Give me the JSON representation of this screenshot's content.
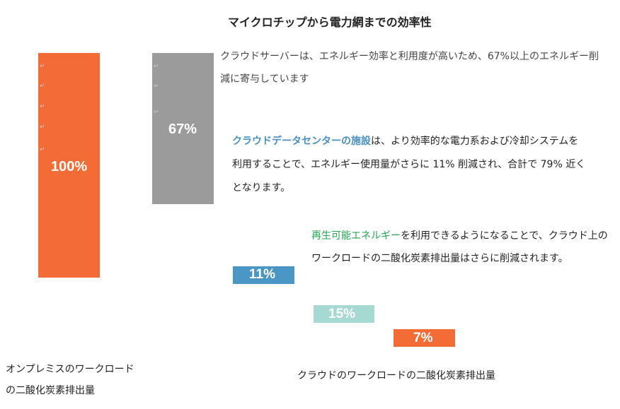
{
  "chart_data": {
    "type": "bar",
    "title": "マイクロチップから電力網までの効率性",
    "bars": [
      {
        "label": "100%",
        "value": 100,
        "color": "#f36c36"
      },
      {
        "label": "67%",
        "value": 67,
        "color": "#9b9b9b"
      },
      {
        "label": "11%",
        "value": 11,
        "color": "#4a96c5"
      },
      {
        "label": "15%",
        "value": 15,
        "color": "#a6d9d1"
      },
      {
        "label": "7%",
        "value": 7,
        "color": "#f36c36"
      }
    ]
  },
  "descriptions": [
    {
      "highlight": "",
      "text": "クラウドサーバーは、エネルギー効率と利用度が高いため、67%以上のエネルギー削減に寄与しています"
    },
    {
      "highlight": "クラウドデータセンターの施設",
      "text": "は、より効率的な電力系および冷却システムを利用することで、エネルギー使用量がさらに 11% 削減され、合計で 79% 近くとなります。"
    },
    {
      "highlight": "再生可能エネルギー",
      "text": "を利用できるようになることで、クラウド上のワークロードの二酸化炭素排出量はさらに削減されます。"
    }
  ],
  "axis_labels": {
    "onprem": "オンプレミスのワークロードの二酸化炭素排出量",
    "cloud": "クラウドのワークロードの二酸化炭素排出量"
  },
  "colors": {
    "blue_text": "#4a90c2",
    "green_text": "#22a650"
  }
}
